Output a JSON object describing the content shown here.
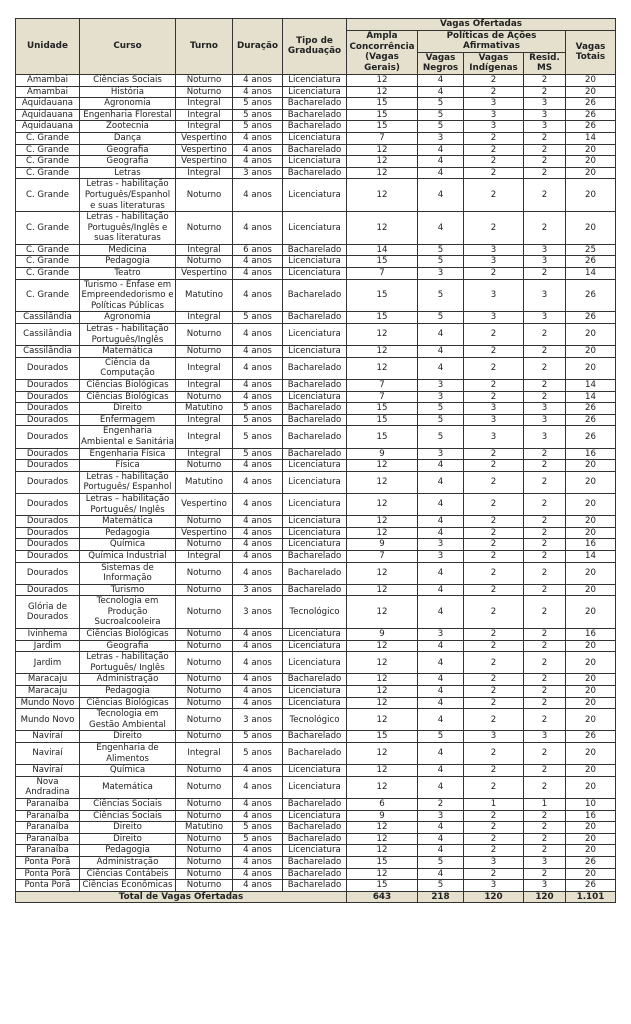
{
  "header": {
    "unidade": "Unidade",
    "curso": "Curso",
    "turno": "Turno",
    "duracao": "Duração",
    "tipo": "Tipo de Graduação",
    "vagas_ofertadas": "Vagas Ofertadas",
    "ampla": "Ampla Concorrência (Vagas Gerais)",
    "politicas": "Políticas de Ações Afirmativas",
    "negros": "Vagas Negros",
    "indigenas": "Vagas Indígenas",
    "resid": "Resid. MS",
    "totais": "Vagas Totais"
  },
  "colors": {
    "header_bg": "#e4e0cd",
    "border": "#333333"
  },
  "rows": [
    [
      "Amambai",
      "Ciências Sociais",
      "Noturno",
      "4 anos",
      "Licenciatura",
      "12",
      "4",
      "2",
      "2",
      "20"
    ],
    [
      "Amambai",
      "História",
      "Noturno",
      "4 anos",
      "Licenciatura",
      "12",
      "4",
      "2",
      "2",
      "20"
    ],
    [
      "Aquidauana",
      "Agronomia",
      "Integral",
      "5 anos",
      "Bacharelado",
      "15",
      "5",
      "3",
      "3",
      "26"
    ],
    [
      "Aquidauana",
      "Engenharia Florestal",
      "Integral",
      "5 anos",
      "Bacharelado",
      "15",
      "5",
      "3",
      "3",
      "26"
    ],
    [
      "Aquidauana",
      "Zootecnia",
      "Integral",
      "5 anos",
      "Bacharelado",
      "15",
      "5",
      "3",
      "3",
      "26"
    ],
    [
      "C. Grande",
      "Dança",
      "Vespertino",
      "4 anos",
      "Licenciatura",
      "7",
      "3",
      "2",
      "2",
      "14"
    ],
    [
      "C. Grande",
      "Geografia",
      "Vespertino",
      "4 anos",
      "Bacharelado",
      "12",
      "4",
      "2",
      "2",
      "20"
    ],
    [
      "C. Grande",
      "Geografia",
      "Vespertino",
      "4 anos",
      "Licenciatura",
      "12",
      "4",
      "2",
      "2",
      "20"
    ],
    [
      "C. Grande",
      "Letras",
      "Integral",
      "3 anos",
      "Bacharelado",
      "12",
      "4",
      "2",
      "2",
      "20"
    ],
    [
      "C. Grande",
      "Letras - habilitação Português/Espanhol e suas literaturas",
      "Noturno",
      "4 anos",
      "Licenciatura",
      "12",
      "4",
      "2",
      "2",
      "20"
    ],
    [
      "C. Grande",
      "Letras - habilitação Português/Inglês e suas literaturas",
      "Noturno",
      "4 anos",
      "Licenciatura",
      "12",
      "4",
      "2",
      "2",
      "20"
    ],
    [
      "C. Grande",
      "Medicina",
      "Integral",
      "6 anos",
      "Bacharelado",
      "14",
      "5",
      "3",
      "3",
      "25"
    ],
    [
      "C. Grande",
      "Pedagogia",
      "Noturno",
      "4 anos",
      "Licenciatura",
      "15",
      "5",
      "3",
      "3",
      "26"
    ],
    [
      "C. Grande",
      "Teatro",
      "Vespertino",
      "4 anos",
      "Licenciatura",
      "7",
      "3",
      "2",
      "2",
      "14"
    ],
    [
      "C. Grande",
      "Turismo - Ênfase em Empreendedorismo e Políticas Públicas",
      "Matutino",
      "4 anos",
      "Bacharelado",
      "15",
      "5",
      "3",
      "3",
      "26"
    ],
    [
      "Cassilândia",
      "Agronomia",
      "Integral",
      "5 anos",
      "Bacharelado",
      "15",
      "5",
      "3",
      "3",
      "26"
    ],
    [
      "Cassilândia",
      "Letras - habilitação Português/Inglês",
      "Noturno",
      "4 anos",
      "Licenciatura",
      "12",
      "4",
      "2",
      "2",
      "20"
    ],
    [
      "Cassilândia",
      "Matemática",
      "Noturno",
      "4 anos",
      "Licenciatura",
      "12",
      "4",
      "2",
      "2",
      "20"
    ],
    [
      "Dourados",
      "Ciência da Computação",
      "Integral",
      "4 anos",
      "Bacharelado",
      "12",
      "4",
      "2",
      "2",
      "20"
    ],
    [
      "Dourados",
      "Ciências Biológicas",
      "Integral",
      "4 anos",
      "Bacharelado",
      "7",
      "3",
      "2",
      "2",
      "14"
    ],
    [
      "Dourados",
      "Ciências Biológicas",
      "Noturno",
      "4 anos",
      "Licenciatura",
      "7",
      "3",
      "2",
      "2",
      "14"
    ],
    [
      "Dourados",
      "Direito",
      "Matutino",
      "5 anos",
      "Bacharelado",
      "15",
      "5",
      "3",
      "3",
      "26"
    ],
    [
      "Dourados",
      "Enfermagem",
      "Integral",
      "5 anos",
      "Bacharelado",
      "15",
      "5",
      "3",
      "3",
      "26"
    ],
    [
      "Dourados",
      "Engenharia Ambiental e Sanitária",
      "Integral",
      "5 anos",
      "Bacharelado",
      "15",
      "5",
      "3",
      "3",
      "26"
    ],
    [
      "Dourados",
      "Engenharia Física",
      "Integral",
      "5 anos",
      "Bacharelado",
      "9",
      "3",
      "2",
      "2",
      "16"
    ],
    [
      "Dourados",
      "Física",
      "Noturno",
      "4 anos",
      "Licenciatura",
      "12",
      "4",
      "2",
      "2",
      "20"
    ],
    [
      "Dourados",
      "Letras - habilitação Português/ Espanhol",
      "Matutino",
      "4 anos",
      "Licenciatura",
      "12",
      "4",
      "2",
      "2",
      "20"
    ],
    [
      "Dourados",
      "Letras – habilitação Português/ Inglês",
      "Vespertino",
      "4 anos",
      "Licenciatura",
      "12",
      "4",
      "2",
      "2",
      "20"
    ],
    [
      "Dourados",
      "Matemática",
      "Noturno",
      "4 anos",
      "Licenciatura",
      "12",
      "4",
      "2",
      "2",
      "20"
    ],
    [
      "Dourados",
      "Pedagogia",
      "Vespertino",
      "4 anos",
      "Licenciatura",
      "12",
      "4",
      "2",
      "2",
      "20"
    ],
    [
      "Dourados",
      "Química",
      "Noturno",
      "4 anos",
      "Licenciatura",
      "9",
      "3",
      "2",
      "2",
      "16"
    ],
    [
      "Dourados",
      "Química Industrial",
      "Integral",
      "4 anos",
      "Bacharelado",
      "7",
      "3",
      "2",
      "2",
      "14"
    ],
    [
      "Dourados",
      "Sistemas de Informação",
      "Noturno",
      "4 anos",
      "Bacharelado",
      "12",
      "4",
      "2",
      "2",
      "20"
    ],
    [
      "Dourados",
      "Turismo",
      "Noturno",
      "3 anos",
      "Bacharelado",
      "12",
      "4",
      "2",
      "2",
      "20"
    ],
    [
      "Glória de Dourados",
      "Tecnologia em Produção Sucroalcooleira",
      "Noturno",
      "3 anos",
      "Tecnológico",
      "12",
      "4",
      "2",
      "2",
      "20"
    ],
    [
      "Ivinhema",
      "Ciências Biológicas",
      "Noturno",
      "4 anos",
      "Licenciatura",
      "9",
      "3",
      "2",
      "2",
      "16"
    ],
    [
      "Jardim",
      "Geografia",
      "Noturno",
      "4 anos",
      "Licenciatura",
      "12",
      "4",
      "2",
      "2",
      "20"
    ],
    [
      "Jardim",
      "Letras - habilitação Português/ Inglês",
      "Noturno",
      "4 anos",
      "Licenciatura",
      "12",
      "4",
      "2",
      "2",
      "20"
    ],
    [
      "Maracaju",
      "Administração",
      "Noturno",
      "4 anos",
      "Bacharelado",
      "12",
      "4",
      "2",
      "2",
      "20"
    ],
    [
      "Maracaju",
      "Pedagogia",
      "Noturno",
      "4 anos",
      "Licenciatura",
      "12",
      "4",
      "2",
      "2",
      "20"
    ],
    [
      "Mundo Novo",
      "Ciências Biológicas",
      "Noturno",
      "4 anos",
      "Licenciatura",
      "12",
      "4",
      "2",
      "2",
      "20"
    ],
    [
      "Mundo Novo",
      "Tecnologia em Gestão Ambiental",
      "Noturno",
      "3 anos",
      "Tecnológico",
      "12",
      "4",
      "2",
      "2",
      "20"
    ],
    [
      "Naviraí",
      "Direito",
      "Noturno",
      "5 anos",
      "Bacharelado",
      "15",
      "5",
      "3",
      "3",
      "26"
    ],
    [
      "Naviraí",
      "Engenharia de Alimentos",
      "Integral",
      "5 anos",
      "Bacharelado",
      "12",
      "4",
      "2",
      "2",
      "20"
    ],
    [
      "Naviraí",
      "Química",
      "Noturno",
      "4 anos",
      "Licenciatura",
      "12",
      "4",
      "2",
      "2",
      "20"
    ],
    [
      "Nova Andradina",
      "Matemática",
      "Noturno",
      "4 anos",
      "Licenciatura",
      "12",
      "4",
      "2",
      "2",
      "20"
    ],
    [
      "Paranaíba",
      "Ciências Sociais",
      "Noturno",
      "4 anos",
      "Bacharelado",
      "6",
      "2",
      "1",
      "1",
      "10"
    ],
    [
      "Paranaíba",
      "Ciências Sociais",
      "Noturno",
      "4 anos",
      "Licenciatura",
      "9",
      "3",
      "2",
      "2",
      "16"
    ],
    [
      "Paranaíba",
      "Direito",
      "Matutino",
      "5 anos",
      "Bacharelado",
      "12",
      "4",
      "2",
      "2",
      "20"
    ],
    [
      "Paranaíba",
      "Direito",
      "Noturno",
      "5 anos",
      "Bacharelado",
      "12",
      "4",
      "2",
      "2",
      "20"
    ],
    [
      "Paranaíba",
      "Pedagogia",
      "Noturno",
      "4 anos",
      "Licenciatura",
      "12",
      "4",
      "2",
      "2",
      "20"
    ],
    [
      "Ponta Porã",
      "Administração",
      "Noturno",
      "4 anos",
      "Bacharelado",
      "15",
      "5",
      "3",
      "3",
      "26"
    ],
    [
      "Ponta Porã",
      "Ciências Contábeis",
      "Noturno",
      "4 anos",
      "Bacharelado",
      "12",
      "4",
      "2",
      "2",
      "20"
    ],
    [
      "Ponta Porã",
      "Ciências Econômicas",
      "Noturno",
      "4 anos",
      "Bacharelado",
      "15",
      "5",
      "3",
      "3",
      "26"
    ]
  ],
  "total": {
    "label": "Total de Vagas Ofertadas",
    "ampla": "643",
    "negros": "218",
    "indigenas": "120",
    "resid": "120",
    "totais": "1.101"
  }
}
